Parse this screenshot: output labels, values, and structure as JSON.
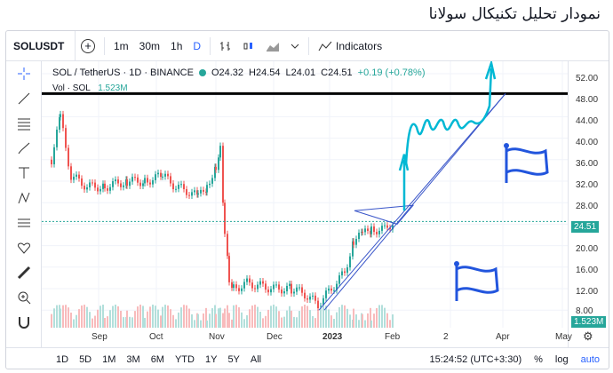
{
  "page_title": "نمودار تحلیل تکنیکال سولانا",
  "toolbar": {
    "symbol": "SOLUSDT",
    "add": "+",
    "intervals": [
      "1m",
      "30m",
      "1h",
      "D"
    ],
    "indicators": "Indicators"
  },
  "legend": {
    "pair": "SOL / TetherUS · 1D · BINANCE",
    "open": "O24.32",
    "high": "H24.54",
    "low": "L24.01",
    "close": "C24.51",
    "change": "+0.19 (+0.78%)"
  },
  "volume": {
    "label": "Vol · SOL",
    "value": "1.523M"
  },
  "price_labels": [
    "52.00",
    "48.00",
    "44.00",
    "40.00",
    "36.00",
    "32.00",
    "28.00",
    "24.51",
    "20.00",
    "16.00",
    "12.00",
    "8.00"
  ],
  "volume_tag": "1.523M",
  "time_labels": [
    "Sep",
    "Oct",
    "Nov",
    "Dec",
    "2023",
    "Feb",
    "2",
    "Apr",
    "May"
  ],
  "bottom": {
    "ranges": [
      "1D",
      "5D",
      "1M",
      "3M",
      "6M",
      "YTD",
      "1Y",
      "5Y",
      "All"
    ],
    "time": "15:24:52 (UTC+3:30)",
    "pct": "%",
    "log": "log",
    "auto": "auto"
  },
  "colors": {
    "up": "#26a69a",
    "down": "#ef5350",
    "trend": "#3a56c9",
    "cyan": "#00b8d4",
    "flag": "#2255dd"
  }
}
